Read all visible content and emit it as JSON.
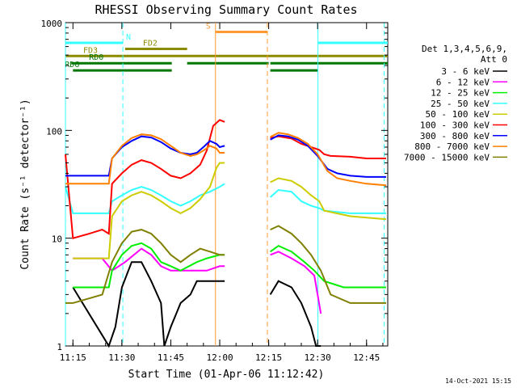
{
  "chart_data": {
    "type": "line",
    "title": "RHESSI Observing Summary Count Rates",
    "xlabel": "Start Time (01-Apr-06 11:12:42)",
    "ylabel": "Count Rate (s⁻¹ detector⁻¹)",
    "y_scale": "log",
    "ylim": [
      1,
      1000
    ],
    "xlim_minutes": [
      672.7,
      771.5
    ],
    "x_ticks": [
      "11:15",
      "11:30",
      "11:45",
      "12:00",
      "12:15",
      "12:30",
      "12:45"
    ],
    "x_tick_minutes": [
      675,
      690,
      705,
      720,
      735,
      750,
      765
    ],
    "y_ticks": [
      "1",
      "10",
      "100",
      "1000"
    ],
    "y_tick_values": [
      1,
      10,
      100,
      1000
    ],
    "legend_header": [
      "Det 1,3,4,5,6,9,",
      "Att 0"
    ],
    "legend_placement": "right",
    "timestamp": "14-Oct-2021 15:15",
    "flag_bars": [
      {
        "label": "N",
        "color": "#33ffff",
        "level": 650,
        "segments": [
          [
            672.7,
            690.3
          ],
          [
            750.1,
            771.5
          ]
        ]
      },
      {
        "label": "S",
        "color": "#ff9933",
        "level": 820,
        "segments": [
          [
            718.7,
            734.6
          ]
        ]
      },
      {
        "label": "FD2",
        "color": "#8b8b00",
        "level": 570,
        "segments": [
          [
            691.0,
            710.0
          ]
        ]
      },
      {
        "label": "FD3",
        "color": "#8b8b00",
        "level": 490,
        "segments": [
          [
            672.7,
            771.5
          ]
        ]
      },
      {
        "label": "RD0",
        "color": "#007700",
        "level": 420,
        "segments": [
          [
            674.5,
            705.3
          ],
          [
            710.0,
            735.0
          ],
          [
            735.5,
            771.5
          ]
        ]
      },
      {
        "label": "RD6",
        "color": "#007700",
        "level": 360,
        "segments": [
          [
            675.0,
            705.3
          ],
          [
            735.5,
            750.0
          ]
        ]
      }
    ],
    "vertical_markers": [
      {
        "minutes": 672.7,
        "color": "#33ffff",
        "style": "solid"
      },
      {
        "minutes": 690.3,
        "color": "#33ffff",
        "style": "dashed"
      },
      {
        "minutes": 718.7,
        "color": "#ff9933",
        "style": "solid"
      },
      {
        "minutes": 734.6,
        "color": "#ff9933",
        "style": "dashed"
      },
      {
        "minutes": 750.1,
        "color": "#33ffff",
        "style": "solid"
      },
      {
        "minutes": 770.4,
        "color": "#33ffff",
        "style": "dashed"
      }
    ],
    "data_gaps_minutes": [
      [
        721.5,
        735.6
      ]
    ],
    "series": [
      {
        "name": "3 - 6 keV",
        "color": "#000000",
        "points": [
          [
            675,
            3.5
          ],
          [
            686,
            1
          ],
          [
            688,
            1.5
          ],
          [
            690,
            3.5
          ],
          [
            693,
            6
          ],
          [
            696,
            6
          ],
          [
            699,
            4
          ],
          [
            702,
            2.5
          ],
          [
            703,
            1
          ],
          [
            705,
            1.5
          ],
          [
            708,
            2.5
          ],
          [
            711,
            3
          ],
          [
            713,
            4
          ],
          [
            716,
            4
          ],
          [
            720,
            4
          ],
          [
            721.5,
            4
          ],
          [
            735.5,
            3
          ],
          [
            738,
            4
          ],
          [
            742,
            3.5
          ],
          [
            745,
            2.5
          ],
          [
            748,
            1.5
          ],
          [
            749.5,
            1
          ],
          [
            751,
            1
          ]
        ]
      },
      {
        "name": "6 - 12 keV",
        "color": "#ff00ff",
        "points": [
          [
            675,
            6.5
          ],
          [
            684,
            6.5
          ],
          [
            687,
            5
          ],
          [
            691,
            6
          ],
          [
            696,
            8
          ],
          [
            699,
            7
          ],
          [
            702,
            5.5
          ],
          [
            705,
            5
          ],
          [
            708,
            5
          ],
          [
            713,
            5
          ],
          [
            716,
            5
          ],
          [
            720,
            5.5
          ],
          [
            721.5,
            5.5
          ],
          [
            735.5,
            7
          ],
          [
            738,
            7.5
          ],
          [
            742,
            6.5
          ],
          [
            746,
            5.5
          ],
          [
            749,
            4.5
          ],
          [
            751,
            2
          ]
        ]
      },
      {
        "name": "12 - 25 keV",
        "color": "#00ee00",
        "points": [
          [
            675,
            3.5
          ],
          [
            686,
            3.5
          ],
          [
            687,
            5
          ],
          [
            690,
            7
          ],
          [
            693,
            8.5
          ],
          [
            696,
            9
          ],
          [
            699,
            8
          ],
          [
            702,
            6
          ],
          [
            705,
            5.5
          ],
          [
            708,
            5
          ],
          [
            713,
            6
          ],
          [
            716,
            6.5
          ],
          [
            720,
            7
          ],
          [
            721.5,
            7
          ],
          [
            735.5,
            7.5
          ],
          [
            738,
            8.5
          ],
          [
            742,
            7.5
          ],
          [
            746,
            6
          ],
          [
            749,
            5
          ],
          [
            752,
            4
          ],
          [
            758,
            3.5
          ],
          [
            771,
            3.5
          ]
        ]
      },
      {
        "name": "25 - 50 keV",
        "color": "#33ffff",
        "points": [
          [
            672.7,
            30
          ],
          [
            675,
            17
          ],
          [
            686,
            17
          ],
          [
            687,
            22
          ],
          [
            690,
            25
          ],
          [
            693,
            28
          ],
          [
            696,
            30
          ],
          [
            699,
            28
          ],
          [
            702,
            25
          ],
          [
            705,
            22
          ],
          [
            708,
            20
          ],
          [
            711,
            22
          ],
          [
            714,
            25
          ],
          [
            717,
            27
          ],
          [
            720,
            30
          ],
          [
            721.5,
            32
          ],
          [
            735.5,
            24
          ],
          [
            738,
            28
          ],
          [
            742,
            27
          ],
          [
            745,
            22
          ],
          [
            748,
            20
          ],
          [
            750.5,
            19
          ],
          [
            752,
            18
          ],
          [
            760,
            17
          ],
          [
            771,
            17
          ]
        ]
      },
      {
        "name": "50 - 100 keV",
        "color": "#cccc00",
        "points": [
          [
            675,
            6.5
          ],
          [
            686,
            6.5
          ],
          [
            687,
            16
          ],
          [
            690,
            22
          ],
          [
            693,
            25
          ],
          [
            696,
            27
          ],
          [
            699,
            25
          ],
          [
            702,
            22
          ],
          [
            705,
            19
          ],
          [
            708,
            17
          ],
          [
            711,
            19
          ],
          [
            714,
            23
          ],
          [
            717,
            30
          ],
          [
            719,
            45
          ],
          [
            720,
            50
          ],
          [
            721.5,
            50
          ],
          [
            735.5,
            33
          ],
          [
            738,
            36
          ],
          [
            742,
            34
          ],
          [
            745,
            30
          ],
          [
            748,
            25
          ],
          [
            750.5,
            22
          ],
          [
            752,
            18
          ],
          [
            760,
            16
          ],
          [
            771,
            15
          ]
        ]
      },
      {
        "name": "100 - 300 keV",
        "color": "#ff0000",
        "points": [
          [
            672.7,
            60
          ],
          [
            675,
            10
          ],
          [
            680,
            11
          ],
          [
            684,
            12
          ],
          [
            686,
            11
          ],
          [
            687,
            32
          ],
          [
            690,
            40
          ],
          [
            693,
            48
          ],
          [
            696,
            53
          ],
          [
            699,
            50
          ],
          [
            702,
            44
          ],
          [
            705,
            38
          ],
          [
            708,
            36
          ],
          [
            711,
            40
          ],
          [
            714,
            48
          ],
          [
            716,
            65
          ],
          [
            718,
            110
          ],
          [
            720,
            125
          ],
          [
            721.5,
            120
          ],
          [
            735.5,
            85
          ],
          [
            738,
            88
          ],
          [
            742,
            84
          ],
          [
            745,
            75
          ],
          [
            748,
            70
          ],
          [
            750.5,
            66
          ],
          [
            752,
            60
          ],
          [
            754,
            58
          ],
          [
            760,
            57
          ],
          [
            765,
            55
          ],
          [
            771,
            55
          ]
        ]
      },
      {
        "name": "300 - 800 keV",
        "color": "#0000ff",
        "points": [
          [
            672.7,
            38
          ],
          [
            675,
            38
          ],
          [
            686,
            38
          ],
          [
            687,
            55
          ],
          [
            690,
            70
          ],
          [
            693,
            80
          ],
          [
            696,
            88
          ],
          [
            699,
            86
          ],
          [
            702,
            78
          ],
          [
            705,
            68
          ],
          [
            708,
            62
          ],
          [
            711,
            60
          ],
          [
            713,
            62
          ],
          [
            715,
            70
          ],
          [
            717,
            80
          ],
          [
            719,
            75
          ],
          [
            720,
            70
          ],
          [
            721.5,
            72
          ],
          [
            735.5,
            82
          ],
          [
            738,
            90
          ],
          [
            741,
            88
          ],
          [
            744,
            82
          ],
          [
            747,
            72
          ],
          [
            750,
            58
          ],
          [
            753,
            44
          ],
          [
            756,
            40
          ],
          [
            760,
            38
          ],
          [
            765,
            37
          ],
          [
            771,
            37
          ]
        ]
      },
      {
        "name": "800 - 7000 keV",
        "color": "#ff8000",
        "points": [
          [
            672.7,
            32
          ],
          [
            675,
            32
          ],
          [
            686,
            32
          ],
          [
            687,
            55
          ],
          [
            690,
            72
          ],
          [
            693,
            85
          ],
          [
            696,
            92
          ],
          [
            699,
            90
          ],
          [
            702,
            83
          ],
          [
            705,
            72
          ],
          [
            708,
            62
          ],
          [
            711,
            58
          ],
          [
            713,
            60
          ],
          [
            715,
            65
          ],
          [
            717,
            72
          ],
          [
            719,
            68
          ],
          [
            720,
            62
          ],
          [
            721.5,
            62
          ],
          [
            735.5,
            87
          ],
          [
            738,
            95
          ],
          [
            741,
            92
          ],
          [
            744,
            85
          ],
          [
            747,
            75
          ],
          [
            750,
            60
          ],
          [
            753,
            42
          ],
          [
            756,
            36
          ],
          [
            760,
            34
          ],
          [
            765,
            32
          ],
          [
            771,
            31
          ]
        ]
      },
      {
        "name": "7000 - 15000 keV",
        "color": "#808000",
        "points": [
          [
            672.7,
            2.5
          ],
          [
            675,
            2.5
          ],
          [
            684,
            3
          ],
          [
            687,
            6
          ],
          [
            690,
            9
          ],
          [
            693,
            11.5
          ],
          [
            696,
            12
          ],
          [
            699,
            11
          ],
          [
            702,
            9
          ],
          [
            705,
            7
          ],
          [
            708,
            6
          ],
          [
            711,
            7
          ],
          [
            714,
            8
          ],
          [
            717,
            7.5
          ],
          [
            720,
            7
          ],
          [
            721.5,
            7
          ],
          [
            735.5,
            12
          ],
          [
            738,
            13
          ],
          [
            742,
            11
          ],
          [
            745,
            9
          ],
          [
            748,
            7
          ],
          [
            751,
            5
          ],
          [
            754,
            3
          ],
          [
            760,
            2.5
          ],
          [
            771,
            2.5
          ]
        ]
      }
    ]
  }
}
